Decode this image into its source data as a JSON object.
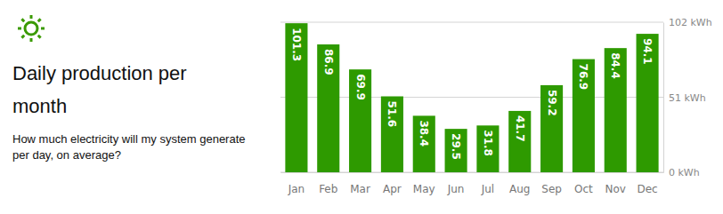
{
  "chart_data": {
    "type": "bar",
    "title": "Daily production per month",
    "subtitle": "How much electricity will my system generate per day, on average?",
    "categories": [
      "Jan",
      "Feb",
      "Mar",
      "Apr",
      "May",
      "Jun",
      "Jul",
      "Aug",
      "Sep",
      "Oct",
      "Nov",
      "Dec"
    ],
    "values": [
      101.3,
      86.9,
      69.9,
      51.6,
      38.4,
      29.5,
      31.8,
      41.7,
      59.2,
      76.9,
      84.4,
      94.1
    ],
    "color": "#2e9a00",
    "ylim": [
      0,
      102
    ],
    "yticks": [
      {
        "value": 0,
        "label": "0 kWh"
      },
      {
        "value": 51,
        "label": "51 kWh"
      },
      {
        "value": 102,
        "label": "102 kWh"
      }
    ],
    "grid": true,
    "data_labels": true
  }
}
